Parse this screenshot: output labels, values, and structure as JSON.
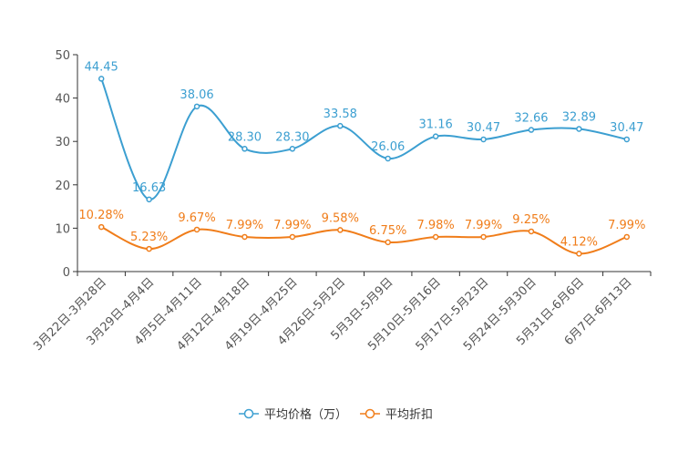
{
  "chart_data": {
    "type": "line",
    "title": "",
    "xlabel": "",
    "ylabel": "",
    "ylim": [
      0,
      50
    ],
    "yticks": [
      0,
      10,
      20,
      30,
      40,
      50
    ],
    "grid": false,
    "legend_position": "bottom-center",
    "categories": [
      "3月22日-3月28日",
      "3月29日-4月4日",
      "4月5日-4月11日",
      "4月12日-4月18日",
      "4月19日-4月25日",
      "4月26日-5月2日",
      "5月3日-5月9日",
      "5月10日-5月16日",
      "5月17日-5月23日",
      "5月24日-5月30日",
      "5月31日-6月6日",
      "6月7日-6月13日"
    ],
    "series": [
      {
        "name": "平均价格（万）",
        "color": "#3c9fd1",
        "values": [
          44.45,
          16.63,
          38.06,
          28.3,
          28.3,
          33.58,
          26.06,
          31.16,
          30.47,
          32.66,
          32.89,
          30.47
        ],
        "labels": [
          "44.45",
          "16.63",
          "38.06",
          "28.30",
          "28.30",
          "33.58",
          "26.06",
          "31.16",
          "30.47",
          "32.66",
          "32.89",
          "30.47"
        ]
      },
      {
        "name": "平均折扣",
        "color": "#f07d1a",
        "values": [
          10.28,
          5.23,
          9.67,
          7.99,
          7.99,
          9.58,
          6.75,
          7.98,
          7.99,
          9.25,
          4.12,
          7.99
        ],
        "labels": [
          "10.28%",
          "5.23%",
          "9.67%",
          "7.99%",
          "7.99%",
          "9.58%",
          "6.75%",
          "7.98%",
          "7.99%",
          "9.25%",
          "4.12%",
          "7.99%"
        ]
      }
    ]
  }
}
